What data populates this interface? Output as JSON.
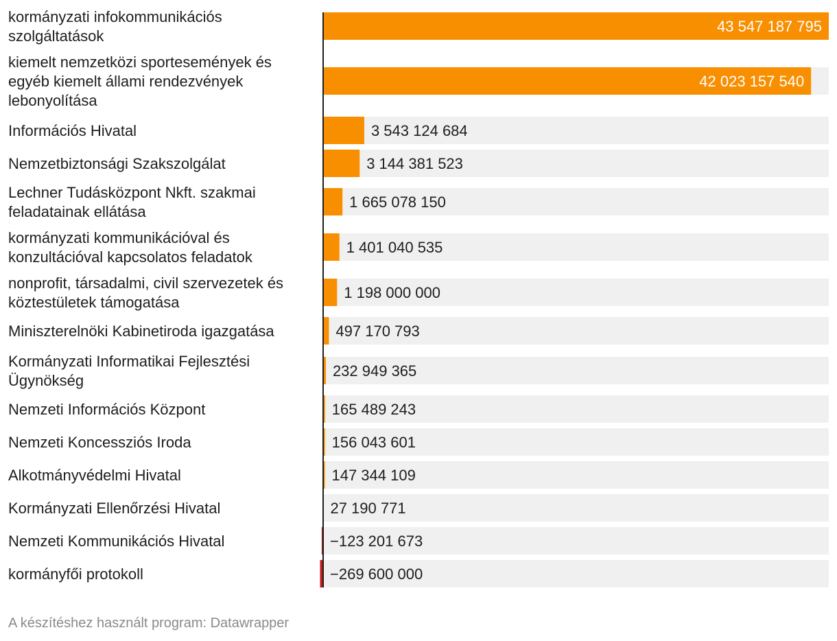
{
  "chart_data": {
    "type": "bar",
    "orientation": "horizontal",
    "categories": [
      "kormányzati infokommunikációs szolgáltatások",
      "kiemelt nemzetközi sportesemények és egyéb kiemelt állami rendezvények lebonyolítása",
      "Információs Hivatal",
      "Nemzetbiztonsági Szakszolgálat",
      "Lechner Tudásközpont Nkft. szakmai feladatainak ellátása",
      "kormányzati kommunikációval és konzultációval kapcsolatos feladatok",
      "nonprofit, társadalmi, civil szervezetek és köztestületek támogatása",
      "Miniszterelnöki Kabinetiroda igazgatása",
      "Kormányzati Informatikai Fejlesztési Ügynökség",
      "Nemzeti Információs Központ",
      "Nemzeti Koncessziós Iroda",
      "Alkotmányvédelmi Hivatal",
      "Kormányzati Ellenőrzési Hivatal",
      "Nemzeti Kommunikációs Hivatal",
      "kormányfői protokoll"
    ],
    "label_lines": [
      [
        "kormányzati infokommunikációs",
        "szolgáltatások"
      ],
      [
        "kiemelt nemzetközi sportesemények és",
        "egyéb kiemelt állami rendezvények",
        "lebonyolítása"
      ],
      [
        "Információs Hivatal"
      ],
      [
        "Nemzetbiztonsági Szakszolgálat"
      ],
      [
        "Lechner Tudásközpont Nkft. szakmai",
        "feladatainak ellátása"
      ],
      [
        "kormányzati kommunikációval és",
        "konzultációval kapcsolatos feladatok"
      ],
      [
        "nonprofit, társadalmi, civil szervezetek és",
        "köztestületek támogatása"
      ],
      [
        "Miniszterelnöki Kabinetiroda igazgatása"
      ],
      [
        "Kormányzati Informatikai Fejlesztési",
        "Ügynökség"
      ],
      [
        "Nemzeti Információs Központ"
      ],
      [
        "Nemzeti Koncessziós Iroda"
      ],
      [
        "Alkotmányvédelmi Hivatal"
      ],
      [
        "Kormányzati Ellenőrzési Hivatal"
      ],
      [
        "Nemzeti Kommunikációs Hivatal"
      ],
      [
        "kormányfői protokoll"
      ]
    ],
    "values": [
      43547187795,
      42023157540,
      3543124684,
      3144381523,
      1665078150,
      1401040535,
      1198000000,
      497170793,
      232949365,
      165489243,
      156043601,
      147344109,
      27190771,
      -123201673,
      -269600000
    ],
    "value_labels": [
      "43 547 187 795",
      "42 023 157 540",
      "3 543 124 684",
      "3 144 381 523",
      "1 665 078 150",
      "1 401 040 535",
      "1 198 000 000",
      "497 170 793",
      "232 949 365",
      "165 489 243",
      "156 043 601",
      "147 344 109",
      "27 190 771",
      "−123 201 673",
      "−269 600 000"
    ],
    "xlim": [
      0,
      43547187795
    ],
    "colors": {
      "positive": "#f88f01",
      "negative": "#c71e1d",
      "background_bar": "#f0f0f0",
      "axis": "#1d1d1d",
      "label_text": "#1d1d1d",
      "label_text_inside": "#ffffff"
    }
  },
  "footer": {
    "credit": "A készítéshez használt program: Datawrapper"
  }
}
